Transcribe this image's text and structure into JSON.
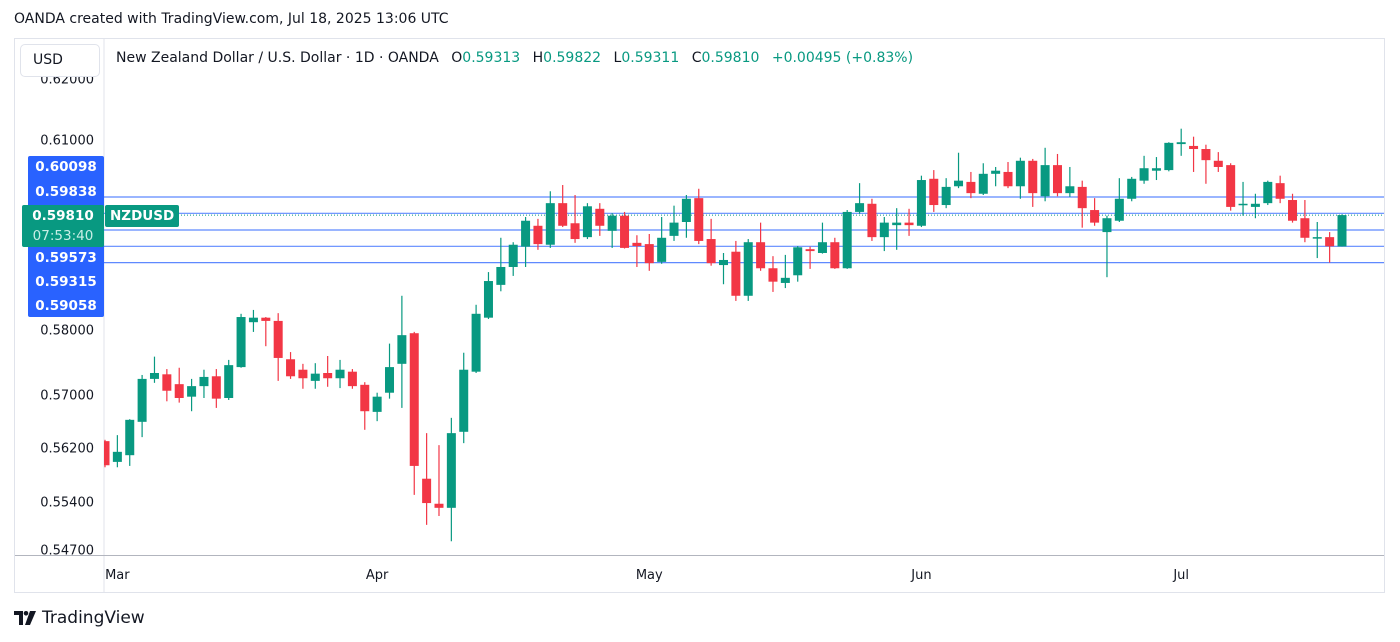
{
  "caption": "OANDA created with TradingView.com, Jul 18, 2025 13:06 UTC",
  "currency_button": "USD",
  "legend": {
    "title": "New Zealand Dollar / U.S. Dollar · 1D · OANDA",
    "o_label": "O",
    "o_value": "0.59313",
    "h_label": "H",
    "h_value": "0.59822",
    "l_label": "L",
    "l_value": "0.59311",
    "c_label": "C",
    "c_value": "0.59810",
    "change": "+0.00495 (+0.83%)"
  },
  "current": {
    "symbol": "NZDUSD",
    "price": "0.59810",
    "countdown": "07:53:40"
  },
  "price_labels": [
    "0.60098",
    "0.59838",
    "0.59573",
    "0.59315",
    "0.59058"
  ],
  "footer_logo": "TradingView",
  "colors": {
    "up": "#089981",
    "down": "#f23645",
    "lines": "#2962ff"
  },
  "chart_data": {
    "type": "candlestick",
    "symbol": "NZDUSD",
    "interval": "1D",
    "yscale": "log",
    "ylim": [
      0.545,
      0.62
    ],
    "ytick_labels": [
      "0.62000",
      "0.61000",
      "0.58000",
      "0.57000",
      "0.56200",
      "0.55400",
      "0.54700"
    ],
    "xtick_labels": [
      "Mar",
      "Apr",
      "May",
      "Jun",
      "Jul"
    ],
    "horizontal_lines": [
      0.60098,
      0.59838,
      0.59573,
      0.59315,
      0.59058
    ],
    "current_price": 0.5981,
    "columns": [
      "date",
      "open",
      "high",
      "low",
      "close"
    ],
    "candles": [
      [
        "2025-02-28",
        0.5632,
        0.5634,
        0.5593,
        0.5596
      ],
      [
        "2025-03-03",
        0.5601,
        0.5641,
        0.5593,
        0.5616
      ],
      [
        "2025-03-04",
        0.5611,
        0.5665,
        0.5595,
        0.5664
      ],
      [
        "2025-03-05",
        0.5661,
        0.5732,
        0.5638,
        0.5726
      ],
      [
        "2025-03-06",
        0.5726,
        0.576,
        0.572,
        0.5735
      ],
      [
        "2025-03-07",
        0.5733,
        0.5741,
        0.5692,
        0.5708
      ],
      [
        "2025-03-10",
        0.5718,
        0.5743,
        0.569,
        0.5697
      ],
      [
        "2025-03-11",
        0.5699,
        0.5726,
        0.5677,
        0.5715
      ],
      [
        "2025-03-12",
        0.5715,
        0.574,
        0.5697,
        0.5729
      ],
      [
        "2025-03-13",
        0.573,
        0.5741,
        0.5682,
        0.5696
      ],
      [
        "2025-03-14",
        0.5697,
        0.5755,
        0.5694,
        0.5747
      ],
      [
        "2025-03-17",
        0.5744,
        0.5826,
        0.5743,
        0.5821
      ],
      [
        "2025-03-18",
        0.5813,
        0.5832,
        0.5798,
        0.582
      ],
      [
        "2025-03-19",
        0.582,
        0.5821,
        0.5776,
        0.5815
      ],
      [
        "2025-03-20",
        0.5815,
        0.5827,
        0.5723,
        0.5758
      ],
      [
        "2025-03-21",
        0.5756,
        0.5767,
        0.5726,
        0.573
      ],
      [
        "2025-03-24",
        0.574,
        0.5749,
        0.5711,
        0.5727
      ],
      [
        "2025-03-25",
        0.5723,
        0.575,
        0.5711,
        0.5734
      ],
      [
        "2025-03-26",
        0.5735,
        0.5761,
        0.5714,
        0.5727
      ],
      [
        "2025-03-27",
        0.5727,
        0.5755,
        0.5712,
        0.574
      ],
      [
        "2025-03-28",
        0.5737,
        0.5741,
        0.5711,
        0.5715
      ],
      [
        "2025-03-31",
        0.5717,
        0.5721,
        0.5649,
        0.5677
      ],
      [
        "2025-04-01",
        0.5676,
        0.5705,
        0.5662,
        0.5699
      ],
      [
        "2025-04-02",
        0.5705,
        0.578,
        0.5696,
        0.5744
      ],
      [
        "2025-04-03",
        0.5749,
        0.5854,
        0.5682,
        0.5793
      ],
      [
        "2025-04-04",
        0.5796,
        0.5798,
        0.5552,
        0.5595
      ],
      [
        "2025-04-07",
        0.5576,
        0.5644,
        0.5508,
        0.554
      ],
      [
        "2025-04-08",
        0.5539,
        0.5626,
        0.5521,
        0.5533
      ],
      [
        "2025-04-09",
        0.5533,
        0.5667,
        0.5484,
        0.5644
      ],
      [
        "2025-04-10",
        0.5646,
        0.5766,
        0.5629,
        0.574
      ],
      [
        "2025-04-11",
        0.5737,
        0.584,
        0.5735,
        0.5826
      ],
      [
        "2025-04-14",
        0.582,
        0.5891,
        0.5818,
        0.5877
      ],
      [
        "2025-04-15",
        0.5871,
        0.5945,
        0.5861,
        0.5899
      ],
      [
        "2025-04-16",
        0.5899,
        0.5938,
        0.5885,
        0.5934
      ],
      [
        "2025-04-17",
        0.5931,
        0.5978,
        0.5899,
        0.5972
      ],
      [
        "2025-04-18",
        0.5964,
        0.5975,
        0.5926,
        0.5935
      ],
      [
        "2025-04-21",
        0.5934,
        0.6019,
        0.5929,
        0.6
      ],
      [
        "2025-04-22",
        0.6,
        0.6029,
        0.5962,
        0.5964
      ],
      [
        "2025-04-23",
        0.5968,
        0.6013,
        0.5937,
        0.5943
      ],
      [
        "2025-04-24",
        0.5946,
        0.6,
        0.5943,
        0.5995
      ],
      [
        "2025-04-25",
        0.5991,
        0.6,
        0.5948,
        0.5964
      ],
      [
        "2025-04-28",
        0.5956,
        0.5984,
        0.5929,
        0.598
      ],
      [
        "2025-04-29",
        0.598,
        0.5986,
        0.5928,
        0.5929
      ],
      [
        "2025-04-30",
        0.5937,
        0.5949,
        0.5899,
        0.5932
      ],
      [
        "2025-05-01",
        0.5935,
        0.5951,
        0.5893,
        0.5905
      ],
      [
        "2025-05-02",
        0.5907,
        0.5978,
        0.5904,
        0.5945
      ],
      [
        "2025-05-05",
        0.5948,
        0.5996,
        0.594,
        0.5969
      ],
      [
        "2025-05-06",
        0.597,
        0.6013,
        0.5945,
        0.6007
      ],
      [
        "2025-05-07",
        0.6008,
        0.6023,
        0.5935,
        0.594
      ],
      [
        "2025-05-08",
        0.5943,
        0.5975,
        0.5901,
        0.5905
      ],
      [
        "2025-05-09",
        0.5902,
        0.5921,
        0.5872,
        0.591
      ],
      [
        "2025-05-12",
        0.5923,
        0.594,
        0.5846,
        0.5854
      ],
      [
        "2025-05-13",
        0.5854,
        0.5943,
        0.5846,
        0.5938
      ],
      [
        "2025-05-14",
        0.5938,
        0.5969,
        0.5893,
        0.5897
      ],
      [
        "2025-05-15",
        0.5897,
        0.5916,
        0.586,
        0.5876
      ],
      [
        "2025-05-16",
        0.5874,
        0.5918,
        0.5866,
        0.5882
      ],
      [
        "2025-05-19",
        0.5886,
        0.5932,
        0.5876,
        0.593
      ],
      [
        "2025-05-20",
        0.5927,
        0.5931,
        0.5896,
        0.5924
      ],
      [
        "2025-05-21",
        0.5921,
        0.5969,
        0.592,
        0.5938
      ],
      [
        "2025-05-22",
        0.5938,
        0.5945,
        0.5896,
        0.5897
      ],
      [
        "2025-05-23",
        0.5897,
        0.5989,
        0.5896,
        0.5986
      ],
      [
        "2025-05-26",
        0.5986,
        0.6032,
        0.5983,
        0.6
      ],
      [
        "2025-05-27",
        0.5999,
        0.6007,
        0.594,
        0.5946
      ],
      [
        "2025-05-28",
        0.5946,
        0.5978,
        0.5924,
        0.5969
      ],
      [
        "2025-05-29",
        0.5965,
        0.5992,
        0.5926,
        0.5969
      ],
      [
        "2025-05-30",
        0.5969,
        0.5991,
        0.5948,
        0.5965
      ],
      [
        "2025-06-02",
        0.5964,
        0.6044,
        0.5962,
        0.6037
      ],
      [
        "2025-06-03",
        0.6039,
        0.6053,
        0.5986,
        0.5997
      ],
      [
        "2025-06-04",
        0.5997,
        0.604,
        0.5992,
        0.6026
      ],
      [
        "2025-06-05",
        0.6027,
        0.6081,
        0.6024,
        0.6036
      ],
      [
        "2025-06-06",
        0.6034,
        0.605,
        0.6008,
        0.6016
      ],
      [
        "2025-06-09",
        0.6015,
        0.6064,
        0.6013,
        0.6047
      ],
      [
        "2025-06-10",
        0.6047,
        0.6058,
        0.6027,
        0.6052
      ],
      [
        "2025-06-11",
        0.605,
        0.6066,
        0.6024,
        0.6027
      ],
      [
        "2025-06-12",
        0.6027,
        0.6073,
        0.6007,
        0.6068
      ],
      [
        "2025-06-13",
        0.6068,
        0.6071,
        0.5994,
        0.6016
      ],
      [
        "2025-06-16",
        0.6011,
        0.6089,
        0.6003,
        0.6061
      ],
      [
        "2025-06-17",
        0.6061,
        0.6079,
        0.6011,
        0.6016
      ],
      [
        "2025-06-18",
        0.6016,
        0.6058,
        0.601,
        0.6027
      ],
      [
        "2025-06-19",
        0.6026,
        0.6036,
        0.5961,
        0.5992
      ],
      [
        "2025-06-20",
        0.5989,
        0.6008,
        0.5964,
        0.5969
      ],
      [
        "2025-06-23",
        0.5954,
        0.598,
        0.5883,
        0.5976
      ],
      [
        "2025-06-24",
        0.5972,
        0.604,
        0.597,
        0.6007
      ],
      [
        "2025-06-25",
        0.6007,
        0.6042,
        0.6003,
        0.6039
      ],
      [
        "2025-06-26",
        0.6036,
        0.6076,
        0.6031,
        0.6056
      ],
      [
        "2025-06-27",
        0.6052,
        0.6074,
        0.6037,
        0.6056
      ],
      [
        "2025-06-30",
        0.6053,
        0.6098,
        0.6051,
        0.6097
      ],
      [
        "2025-07-01",
        0.6095,
        0.612,
        0.6076,
        0.6098
      ],
      [
        "2025-07-02",
        0.6092,
        0.6107,
        0.605,
        0.6087
      ],
      [
        "2025-07-03",
        0.6087,
        0.6094,
        0.6031,
        0.6069
      ],
      [
        "2025-07-04",
        0.6068,
        0.6082,
        0.605,
        0.6058
      ],
      [
        "2025-07-07",
        0.6061,
        0.6064,
        0.5988,
        0.5994
      ],
      [
        "2025-07-08",
        0.5997,
        0.6034,
        0.598,
        0.5999
      ],
      [
        "2025-07-09",
        0.5994,
        0.6015,
        0.5976,
        0.5999
      ],
      [
        "2025-07-10",
        0.6,
        0.6036,
        0.5997,
        0.6034
      ],
      [
        "2025-07-11",
        0.6032,
        0.6044,
        0.6,
        0.6007
      ],
      [
        "2025-07-14",
        0.6005,
        0.6015,
        0.5969,
        0.5972
      ],
      [
        "2025-07-15",
        0.5976,
        0.6005,
        0.5938,
        0.5945
      ],
      [
        "2025-07-16",
        0.5945,
        0.597,
        0.5913,
        0.5946
      ],
      [
        "2025-07-17",
        0.5946,
        0.5954,
        0.59058,
        0.59315
      ],
      [
        "2025-07-18",
        0.59313,
        0.59822,
        0.59311,
        0.5981
      ]
    ]
  }
}
